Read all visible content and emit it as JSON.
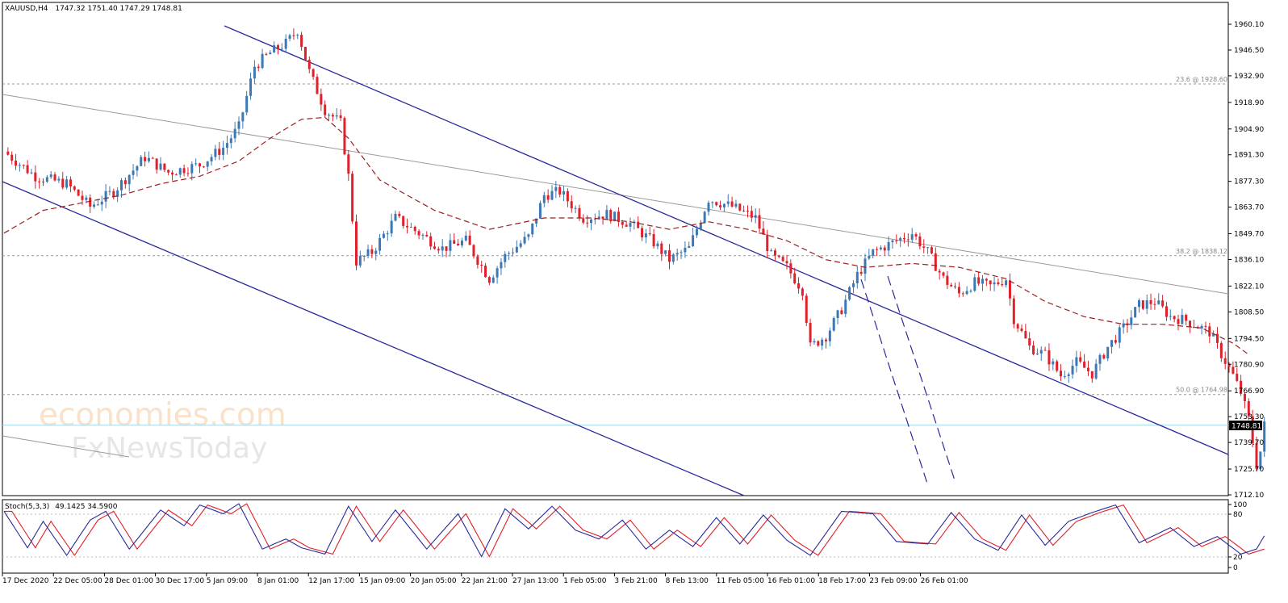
{
  "main_panel": {
    "symbol_label": "XAUUSD,H4",
    "ohlc_label": "1747.32 1751.40 1747.29 1748.81",
    "current_price_label": "1748.81"
  },
  "stoch_panel": {
    "label": "Stoch(5,3,3)",
    "values_label": "49.1425 34.5900",
    "scale_labels": [
      "100",
      "80",
      "20",
      "0"
    ]
  },
  "fib_labels": [
    {
      "text": "23.6 @ 1928.60",
      "price": 1928.6
    },
    {
      "text": "38.2 @ 1838.12",
      "price": 1838.12
    },
    {
      "text": "50.0 @ 1764.98",
      "price": 1764.98
    }
  ],
  "watermark": {
    "line1": "economies.com",
    "line2": "FxNewsToday"
  },
  "colors": {
    "bull": "#3c78b4",
    "bear": "#e0202a",
    "channel": "#2a2a9c",
    "ma": "#9a2020",
    "trend_gray": "#9a9a9a",
    "fib_dot": "#999999",
    "price_line": "#9fd8ef",
    "stoch_main": "#2a2a9c",
    "stoch_signal": "#e0202a"
  },
  "chart_data": {
    "type": "candlestick",
    "title": "",
    "y_ticks": [
      "1960.10",
      "1946.50",
      "1932.90",
      "1918.90",
      "1904.90",
      "1891.30",
      "1877.30",
      "1863.70",
      "1849.70",
      "1836.10",
      "1822.10",
      "1808.50",
      "1794.50",
      "1780.90",
      "1766.90",
      "1753.30",
      "1739.70",
      "1725.70",
      "1712.10"
    ],
    "x_ticks": [
      "17 Dec 2020",
      "22 Dec 05:00",
      "28 Dec 01:00",
      "30 Dec 17:00",
      "5 Jan 09:00",
      "8 Jan 01:00",
      "12 Jan 17:00",
      "15 Jan 09:00",
      "20 Jan 05:00",
      "22 Jan 21:00",
      "27 Jan 13:00",
      "1 Feb 05:00",
      "3 Feb 21:00",
      "8 Feb 13:00",
      "11 Feb 05:00",
      "16 Feb 01:00",
      "18 Feb 17:00",
      "23 Feb 09:00",
      "26 Feb 01:00"
    ],
    "price_waypoints": [
      [
        0,
        1893
      ],
      [
        8,
        1880
      ],
      [
        16,
        1876
      ],
      [
        22,
        1864
      ],
      [
        28,
        1872
      ],
      [
        36,
        1890
      ],
      [
        42,
        1882
      ],
      [
        50,
        1886
      ],
      [
        56,
        1895
      ],
      [
        60,
        1906
      ],
      [
        64,
        1938
      ],
      [
        68,
        1945
      ],
      [
        72,
        1950
      ],
      [
        75,
        1957
      ],
      [
        78,
        1935
      ],
      [
        82,
        1915
      ],
      [
        86,
        1908
      ],
      [
        88,
        1880
      ],
      [
        90,
        1835
      ],
      [
        94,
        1840
      ],
      [
        100,
        1858
      ],
      [
        106,
        1850
      ],
      [
        112,
        1842
      ],
      [
        118,
        1846
      ],
      [
        124,
        1826
      ],
      [
        128,
        1838
      ],
      [
        134,
        1848
      ],
      [
        138,
        1870
      ],
      [
        142,
        1872
      ],
      [
        148,
        1858
      ],
      [
        154,
        1860
      ],
      [
        160,
        1855
      ],
      [
        166,
        1845
      ],
      [
        170,
        1836
      ],
      [
        175,
        1842
      ],
      [
        180,
        1868
      ],
      [
        186,
        1864
      ],
      [
        192,
        1858
      ],
      [
        196,
        1838
      ],
      [
        200,
        1832
      ],
      [
        204,
        1820
      ],
      [
        206,
        1790
      ],
      [
        210,
        1796
      ],
      [
        214,
        1810
      ],
      [
        218,
        1828
      ],
      [
        222,
        1840
      ],
      [
        228,
        1846
      ],
      [
        232,
        1850
      ],
      [
        236,
        1840
      ],
      [
        240,
        1826
      ],
      [
        244,
        1818
      ],
      [
        248,
        1824
      ],
      [
        252,
        1822
      ],
      [
        256,
        1826
      ],
      [
        258,
        1805
      ],
      [
        262,
        1790
      ],
      [
        266,
        1786
      ],
      [
        270,
        1775
      ],
      [
        274,
        1782
      ],
      [
        278,
        1776
      ],
      [
        282,
        1790
      ],
      [
        286,
        1800
      ],
      [
        290,
        1812
      ],
      [
        294,
        1814
      ],
      [
        298,
        1806
      ],
      [
        302,
        1804
      ],
      [
        306,
        1800
      ],
      [
        308,
        1798
      ],
      [
        310,
        1790
      ],
      [
        314,
        1775
      ],
      [
        316,
        1766
      ],
      [
        318,
        1752
      ],
      [
        320,
        1728
      ],
      [
        321,
        1735
      ],
      [
        322,
        1748.81
      ]
    ],
    "ma_waypoints": [
      [
        0,
        1850
      ],
      [
        10,
        1862
      ],
      [
        20,
        1866
      ],
      [
        30,
        1870
      ],
      [
        40,
        1876
      ],
      [
        50,
        1880
      ],
      [
        60,
        1888
      ],
      [
        68,
        1900
      ],
      [
        76,
        1910
      ],
      [
        82,
        1911
      ],
      [
        88,
        1900
      ],
      [
        96,
        1878
      ],
      [
        110,
        1862
      ],
      [
        124,
        1852
      ],
      [
        138,
        1858
      ],
      [
        150,
        1858
      ],
      [
        160,
        1856
      ],
      [
        170,
        1852
      ],
      [
        180,
        1856
      ],
      [
        190,
        1852
      ],
      [
        200,
        1846
      ],
      [
        210,
        1836
      ],
      [
        220,
        1832
      ],
      [
        232,
        1834
      ],
      [
        244,
        1832
      ],
      [
        256,
        1826
      ],
      [
        266,
        1814
      ],
      [
        276,
        1806
      ],
      [
        286,
        1802
      ],
      [
        296,
        1802
      ],
      [
        306,
        1800
      ],
      [
        314,
        1792
      ],
      [
        318,
        1786
      ]
    ],
    "stoch_waypoints": [
      [
        0,
        88
      ],
      [
        6,
        30
      ],
      [
        10,
        72
      ],
      [
        16,
        18
      ],
      [
        22,
        74
      ],
      [
        26,
        88
      ],
      [
        32,
        28
      ],
      [
        40,
        90
      ],
      [
        46,
        65
      ],
      [
        50,
        98
      ],
      [
        56,
        84
      ],
      [
        60,
        100
      ],
      [
        66,
        28
      ],
      [
        72,
        44
      ],
      [
        76,
        30
      ],
      [
        82,
        20
      ],
      [
        88,
        96
      ],
      [
        94,
        40
      ],
      [
        100,
        90
      ],
      [
        108,
        28
      ],
      [
        116,
        84
      ],
      [
        122,
        16
      ],
      [
        128,
        92
      ],
      [
        134,
        60
      ],
      [
        140,
        96
      ],
      [
        146,
        58
      ],
      [
        152,
        44
      ],
      [
        158,
        74
      ],
      [
        164,
        28
      ],
      [
        170,
        58
      ],
      [
        176,
        32
      ],
      [
        182,
        78
      ],
      [
        188,
        36
      ],
      [
        194,
        82
      ],
      [
        200,
        42
      ],
      [
        206,
        18
      ],
      [
        214,
        88
      ],
      [
        222,
        84
      ],
      [
        228,
        40
      ],
      [
        236,
        36
      ],
      [
        242,
        86
      ],
      [
        248,
        44
      ],
      [
        254,
        26
      ],
      [
        260,
        82
      ],
      [
        266,
        34
      ],
      [
        272,
        72
      ],
      [
        278,
        86
      ],
      [
        284,
        98
      ],
      [
        290,
        38
      ],
      [
        298,
        62
      ],
      [
        304,
        32
      ],
      [
        310,
        48
      ],
      [
        316,
        20
      ],
      [
        320,
        28
      ],
      [
        322,
        49
      ]
    ],
    "ylim": [
      1712.1,
      1960.1
    ],
    "stoch_range": [
      0,
      100
    ],
    "grid": false,
    "legend": "none"
  }
}
